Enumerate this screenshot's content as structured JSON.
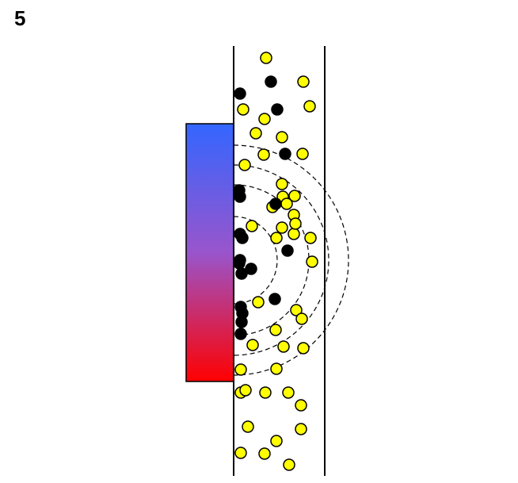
{
  "panel": {
    "label": "5"
  },
  "colors": {
    "magnet_top": "#3366ff",
    "magnet_mid": "#9955cc",
    "magnet_bottom": "#ff0000",
    "particle_free": "#ffff00",
    "particle_captured": "#000000",
    "wall": "#000000",
    "field_line": "#000000"
  },
  "diagram": {
    "field_line_count": 4,
    "free_particle_count": 43,
    "captured_particle_count": 19
  }
}
